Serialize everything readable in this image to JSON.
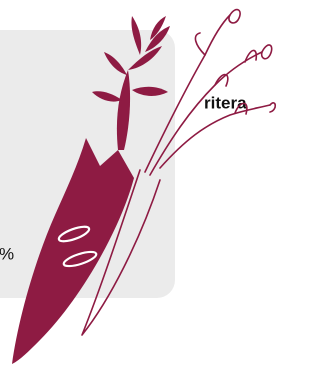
{
  "heading": "ritera",
  "percent": "%"
}
